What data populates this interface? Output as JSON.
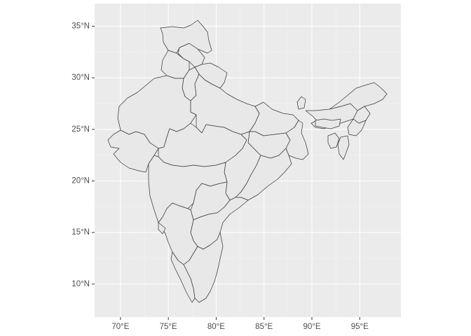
{
  "map": {
    "type": "choropleth-outline",
    "x_axis": {
      "ticks": [
        {
          "value": 70,
          "label": "70°E"
        },
        {
          "value": 75,
          "label": "75°E"
        },
        {
          "value": 80,
          "label": "80°E"
        },
        {
          "value": 85,
          "label": "85°E"
        },
        {
          "value": 90,
          "label": "90°E"
        },
        {
          "value": 95,
          "label": "95°E"
        }
      ],
      "range": [
        67.3,
        99.3
      ]
    },
    "y_axis": {
      "ticks": [
        {
          "value": 10,
          "label": "10°N"
        },
        {
          "value": 15,
          "label": "15°N"
        },
        {
          "value": 20,
          "label": "20°N"
        },
        {
          "value": 25,
          "label": "25°N"
        },
        {
          "value": 30,
          "label": "30°N"
        },
        {
          "value": 35,
          "label": "35°N"
        }
      ],
      "range": [
        6.8,
        37.2
      ]
    },
    "grid": true,
    "panel_color": "#ebebeb",
    "region_fill": "#e8e8e8",
    "region_stroke": "#3b3b3b"
  }
}
